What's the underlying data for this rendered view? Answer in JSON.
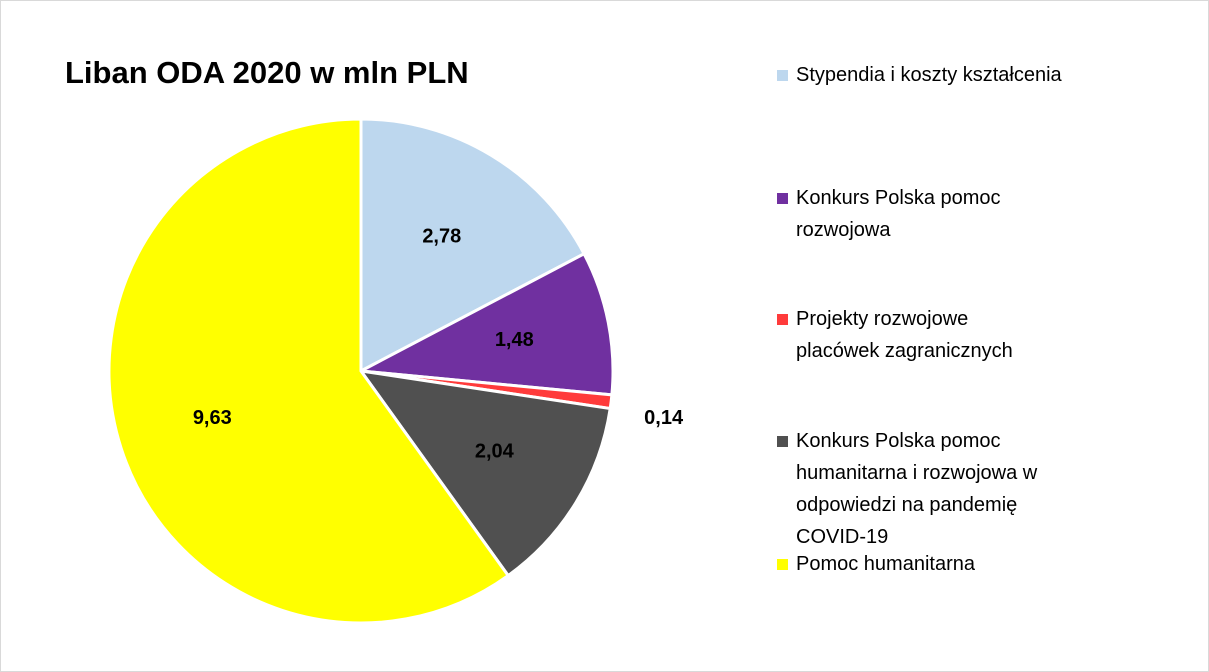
{
  "chart_data": {
    "type": "pie",
    "title": "Liban ODA 2020 w mln PLN",
    "categories": [
      "Stypendia i koszty kształcenia",
      "Konkurs Polska pomoc rozwojowa",
      "Projekty rozwojowe placówek zagranicznych",
      "Konkurs Polska pomoc humanitarna i rozwojowa w odpowiedzi na pandemię COVID-19",
      "Pomoc humanitarna"
    ],
    "values": [
      2.78,
      1.48,
      0.14,
      2.04,
      9.63
    ],
    "value_labels": [
      "2,78",
      "1,48",
      "0,14",
      "2,04",
      "9,63"
    ],
    "colors": [
      "#bdd7ee",
      "#7030a0",
      "#ff3b3b",
      "#505050",
      "#ffff00"
    ],
    "legend": "right"
  }
}
